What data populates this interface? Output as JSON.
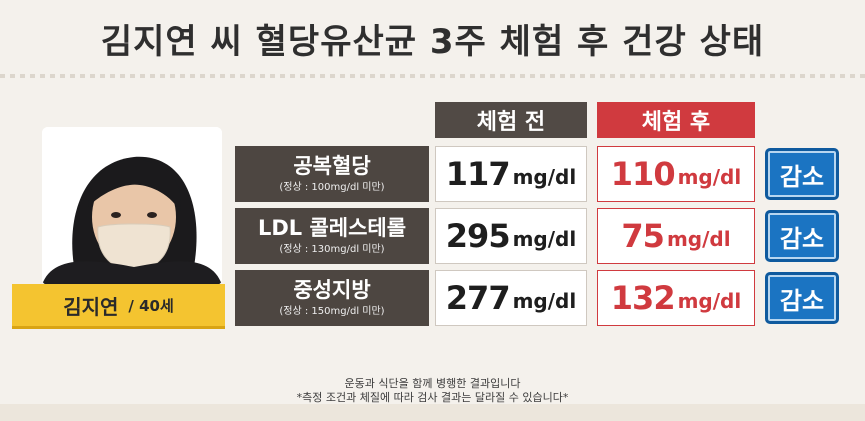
{
  "title": "김지연 씨 혈당유산균 3주 체험 후 건강 상태",
  "person": {
    "name": "김지연",
    "age": "/ 40세"
  },
  "columns": {
    "before": "체험 전",
    "after": "체험 후"
  },
  "rows": [
    {
      "label": "공복혈당",
      "normal": "(정상 : 100mg/dl 미만)",
      "before_value": "117",
      "after_value": "110",
      "unit": "mg/dl",
      "status": "감소"
    },
    {
      "label": "LDL 콜레스테롤",
      "normal": "(정상 : 130mg/dl 미만)",
      "before_value": "295",
      "after_value": "75",
      "unit": "mg/dl",
      "status": "감소"
    },
    {
      "label": "중성지방",
      "normal": "(정상 : 150mg/dl 미만)",
      "before_value": "277",
      "after_value": "132",
      "unit": "mg/dl",
      "status": "감소"
    }
  ],
  "notes": [
    "운동과 식단을 함께 병행한 결과입니다",
    "*측정 조건과 체질에 따라 검사 결과는 달라질 수 있습니다*"
  ],
  "colors": {
    "before_header": "#514a45",
    "after_accent": "#d03a3f",
    "badge": "#1b74c2",
    "name_plate": "#f4c430"
  }
}
